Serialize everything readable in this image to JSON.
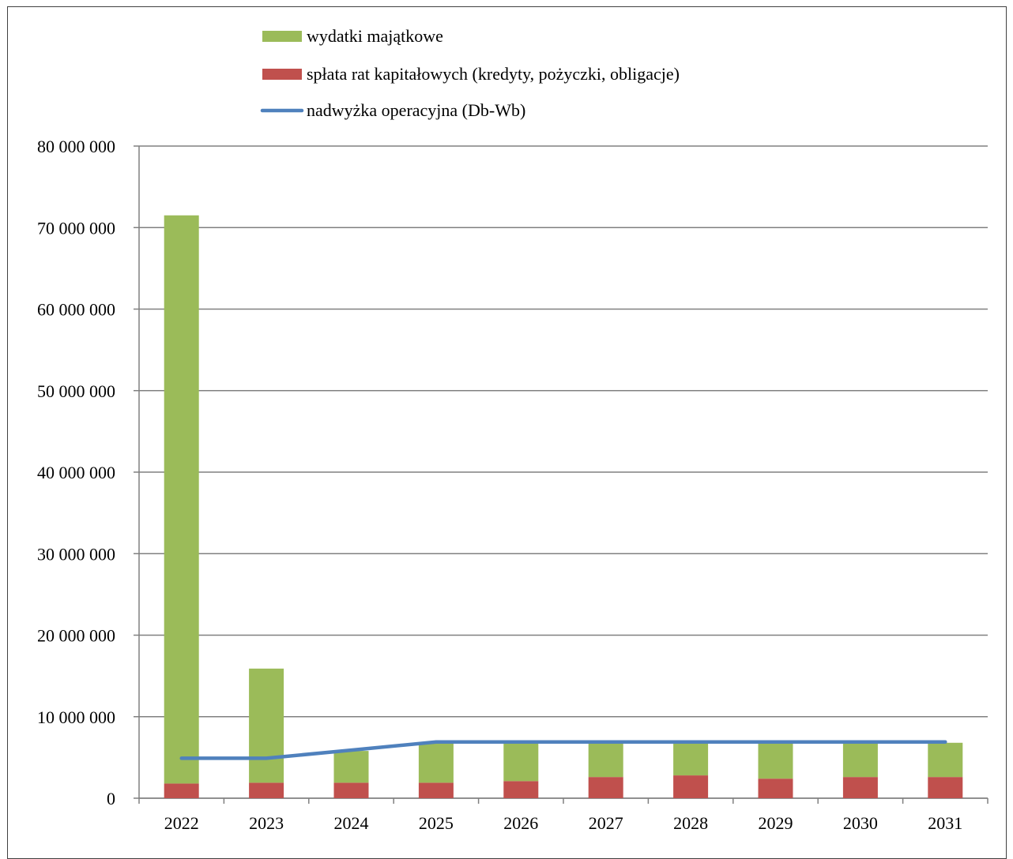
{
  "chart_data": {
    "type": "bar",
    "stacked": true,
    "categories": [
      "2022",
      "2023",
      "2024",
      "2025",
      "2026",
      "2027",
      "2028",
      "2029",
      "2030",
      "2031"
    ],
    "series": [
      {
        "name": "spłata rat kapitałowych (kredyty, pożyczki, obligacje)",
        "type": "bar",
        "color": "#c0504d",
        "values": [
          1800000,
          1900000,
          1900000,
          1900000,
          2100000,
          2600000,
          2800000,
          2400000,
          2600000,
          2600000
        ]
      },
      {
        "name": "wydatki majątkowe",
        "type": "bar",
        "color": "#9bbb59",
        "values": [
          69700000,
          14000000,
          3900000,
          4800000,
          4600000,
          4100000,
          3900000,
          4300000,
          4100000,
          4200000
        ]
      },
      {
        "name": "nadwyżka operacyjna (Db-Wb)",
        "type": "line",
        "color": "#4f81bd",
        "values": [
          4900000,
          4900000,
          5900000,
          6900000,
          6900000,
          6900000,
          6900000,
          6900000,
          6900000,
          6900000
        ]
      }
    ],
    "legend_order": [
      1,
      0,
      2
    ],
    "legend_position": "top",
    "y_ticks": [
      "0",
      "10 000 000",
      "20 000 000",
      "30 000 000",
      "40 000 000",
      "50 000 000",
      "60 000 000",
      "70 000 000",
      "80 000 000"
    ],
    "ylim": [
      0,
      80000000
    ],
    "grid": true,
    "title": "",
    "xlabel": "",
    "ylabel": ""
  }
}
